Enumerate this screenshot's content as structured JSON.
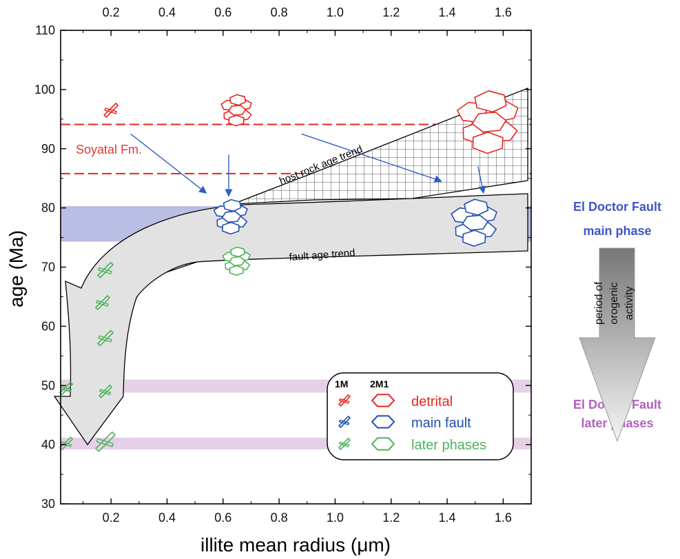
{
  "chart_data": {
    "type": "scatter",
    "xlabel": "illite mean radius (μm)",
    "ylabel": "age (Ma)",
    "xlim": [
      0.02,
      1.7
    ],
    "ylim": [
      30,
      110
    ],
    "x_ticks": [
      "0.2",
      "0.4",
      "0.6",
      "0.8",
      "1.0",
      "1.2",
      "1.4",
      "1.6"
    ],
    "x_tick_values": [
      0.2,
      0.4,
      0.6,
      0.8,
      1.0,
      1.2,
      1.4,
      1.6
    ],
    "y_ticks": [
      "30",
      "40",
      "50",
      "60",
      "70",
      "80",
      "90",
      "100",
      "110"
    ],
    "y_tick_values": [
      30,
      40,
      50,
      60,
      70,
      80,
      90,
      100,
      110
    ],
    "bands": {
      "main_fault": [
        74.3,
        80.3
      ],
      "later_phase_1": [
        48.8,
        51.0
      ],
      "later_phase_2": [
        39.2,
        41.2
      ]
    },
    "soyatal_lines": [
      94.1,
      85.8
    ],
    "annotations": {
      "soyatal": "Soyatal Fm.",
      "host_rock_trend": "host rock age trend",
      "fault_trend": "fault age trend"
    },
    "legend": {
      "col_1m": "1M",
      "col_2m1": "2M1",
      "items": [
        {
          "label": "detrital",
          "color": "#e8251f"
        },
        {
          "label": "main fault",
          "color": "#1f4fb0"
        },
        {
          "label": "later phases",
          "color": "#4cb35a"
        }
      ]
    },
    "side_panel": {
      "main_phase": "El Doctor Fault\nmain phase",
      "period": "period of\norogenic\nactivity",
      "later_phases": "El Doctor Fault\nlater phases"
    },
    "points": {
      "detrital": [
        {
          "x": 0.2,
          "y": 96.5,
          "kind": "1M"
        },
        {
          "x": 0.65,
          "y": 96.5,
          "kind": "2M1"
        },
        {
          "x": 1.55,
          "y": 94.5,
          "kind": "2M1"
        }
      ],
      "main_fault": [
        {
          "x": 0.63,
          "y": 78.5,
          "kind": "2M1"
        },
        {
          "x": 1.5,
          "y": 77.5,
          "kind": "2M1"
        }
      ],
      "later_phases": [
        {
          "x": 0.65,
          "y": 71.0,
          "kind": "2M1"
        },
        {
          "x": 0.18,
          "y": 69.5,
          "kind": "1M"
        },
        {
          "x": 0.17,
          "y": 64.0,
          "kind": "1M"
        },
        {
          "x": 0.18,
          "y": 58.0,
          "kind": "1M"
        },
        {
          "x": 0.04,
          "y": 49.5,
          "kind": "1M"
        },
        {
          "x": 0.18,
          "y": 49.0,
          "kind": "1M"
        },
        {
          "x": 0.04,
          "y": 40.2,
          "kind": "1M"
        },
        {
          "x": 0.18,
          "y": 40.5,
          "kind": "1M"
        }
      ]
    },
    "arrows": [
      {
        "from": [
          0.27,
          92.5
        ],
        "to": [
          0.54,
          82.5
        ]
      },
      {
        "from": [
          0.62,
          89.0
        ],
        "to": [
          0.62,
          82.0
        ]
      },
      {
        "from": [
          0.88,
          92.5
        ],
        "to": [
          1.38,
          84.5
        ]
      },
      {
        "from": [
          1.51,
          87.0
        ],
        "to": [
          1.53,
          82.5
        ]
      }
    ]
  }
}
